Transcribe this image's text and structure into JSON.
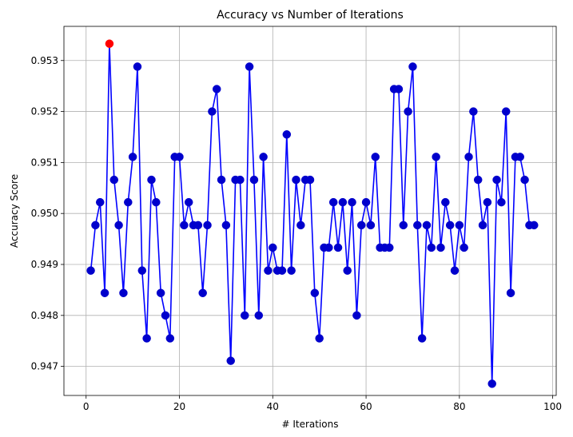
{
  "chart_data": {
    "type": "line",
    "title": "Accuracy vs Number of Iterations",
    "xlabel": "# Iterations",
    "ylabel": "Accuracy Score",
    "xlim": [
      -4.75,
      100.75
    ],
    "ylim": [
      0.94643,
      0.95367
    ],
    "xticks": [
      0,
      20,
      40,
      60,
      80,
      100
    ],
    "yticks": [
      0.947,
      0.948,
      0.949,
      0.95,
      0.951,
      0.952,
      0.953
    ],
    "grid": true,
    "colors": {
      "line": "#0000ff",
      "marker": "#0000cc",
      "highlight": "#ff0000"
    },
    "highlight_index": 4,
    "series": [
      {
        "x": [
          1,
          2,
          3,
          4,
          5,
          6,
          7,
          8,
          9,
          10,
          11,
          12,
          13,
          14,
          15,
          16,
          17,
          18,
          19,
          20,
          21,
          22,
          23,
          24,
          25,
          26,
          27,
          28,
          29,
          30,
          31,
          32,
          33,
          34,
          35,
          36,
          37,
          38,
          39,
          40,
          41,
          42,
          43,
          44,
          45,
          46,
          47,
          48,
          49,
          50,
          51,
          52,
          53,
          54,
          55,
          56,
          57,
          58,
          59,
          60,
          61,
          62,
          63,
          64,
          65,
          66,
          67,
          68,
          69,
          70,
          71,
          72,
          73,
          74,
          75,
          76,
          77,
          78,
          79,
          80,
          81,
          82,
          83,
          84,
          85,
          86,
          87,
          88,
          89,
          90,
          91,
          92,
          93,
          94,
          95,
          96
        ],
        "values": [
          0.94888,
          0.94977,
          0.95022,
          0.94844,
          0.95333,
          0.95066,
          0.94977,
          0.94844,
          0.95022,
          0.95111,
          0.95288,
          0.94888,
          0.94755,
          0.95066,
          0.95022,
          0.94844,
          0.948,
          0.94755,
          0.95111,
          0.95111,
          0.94977,
          0.95022,
          0.94977,
          0.94977,
          0.94844,
          0.94977,
          0.952,
          0.95244,
          0.95066,
          0.94977,
          0.94711,
          0.95066,
          0.95066,
          0.948,
          0.95288,
          0.95066,
          0.948,
          0.95111,
          0.94888,
          0.94933,
          0.94888,
          0.94888,
          0.95155,
          0.94888,
          0.95066,
          0.94977,
          0.95066,
          0.95066,
          0.94844,
          0.94755,
          0.94933,
          0.94933,
          0.95022,
          0.94933,
          0.95022,
          0.94888,
          0.95022,
          0.948,
          0.94977,
          0.95022,
          0.94977,
          0.95111,
          0.94933,
          0.94933,
          0.94933,
          0.95244,
          0.95244,
          0.94977,
          0.952,
          0.95288,
          0.94977,
          0.94755,
          0.94977,
          0.94933,
          0.95111,
          0.94933,
          0.95022,
          0.94977,
          0.94888,
          0.94977,
          0.94933,
          0.95111,
          0.952,
          0.95066,
          0.94977,
          0.95022,
          0.94666,
          0.95066,
          0.95022,
          0.952,
          0.94844,
          0.95111,
          0.95111,
          0.95066,
          0.94977,
          0.94977
        ]
      }
    ]
  }
}
